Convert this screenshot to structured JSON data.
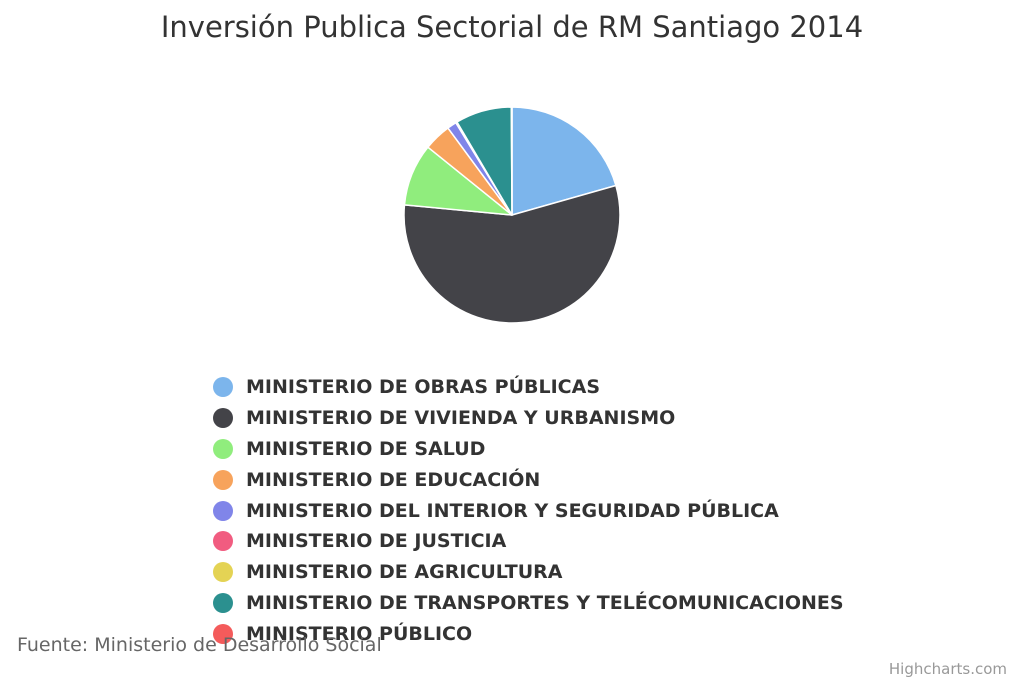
{
  "chart_data": {
    "type": "pie",
    "title": "Inversión Publica Sectorial de RM Santiago 2014",
    "series": [
      {
        "name": "MINISTERIO DE OBRAS PÚBLICAS",
        "value": 20.6,
        "color": "#7cb5ec"
      },
      {
        "name": "MINISTERIO DE VIVIENDA Y URBANISMO",
        "value": 55.9,
        "color": "#434348"
      },
      {
        "name": "MINISTERIO DE SALUD",
        "value": 9.3,
        "color": "#90ed7d"
      },
      {
        "name": "MINISTERIO DE EDUCACIÓN",
        "value": 4.1,
        "color": "#f7a35c"
      },
      {
        "name": "MINISTERIO DEL INTERIOR Y SEGURIDAD PÚBLICA",
        "value": 1.4,
        "color": "#8085e9"
      },
      {
        "name": "MINISTERIO DE JUSTICIA",
        "value": 0.1,
        "color": "#f15c80"
      },
      {
        "name": "MINISTERIO DE AGRICULTURA",
        "value": 0.1,
        "color": "#e4d354"
      },
      {
        "name": "MINISTERIO DE TRANSPORTES Y TELÉCOMUNICACIONES",
        "value": 8.4,
        "color": "#2b908f"
      },
      {
        "name": "MINISTERIO PÚBLICO",
        "value": 0.1,
        "color": "#f45b5b"
      }
    ],
    "legend_position": "bottom"
  },
  "source": "Fuente: Ministerio de Desarrollo Social",
  "credits": "Highcharts.com"
}
